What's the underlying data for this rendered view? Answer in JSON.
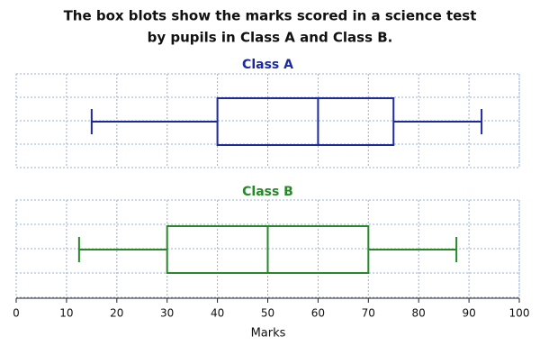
{
  "chart_data": {
    "type": "box",
    "title": [
      "The box blots show the marks scored in a science test",
      "by pupils in Class A and Class B."
    ],
    "xlabel": "Marks",
    "xlim": [
      0,
      100
    ],
    "xticks": [
      0,
      10,
      20,
      30,
      40,
      50,
      60,
      70,
      80,
      90,
      100
    ],
    "grid": true,
    "series": [
      {
        "name": "Class A",
        "color": "#1c2aa0",
        "whislo": 15,
        "q1": 40,
        "median": 60,
        "q3": 75,
        "whishi": 92.5
      },
      {
        "name": "Class B",
        "color": "#27882a",
        "whislo": 12.5,
        "q1": 30,
        "median": 50,
        "q3": 70,
        "whishi": 87.5
      }
    ]
  }
}
